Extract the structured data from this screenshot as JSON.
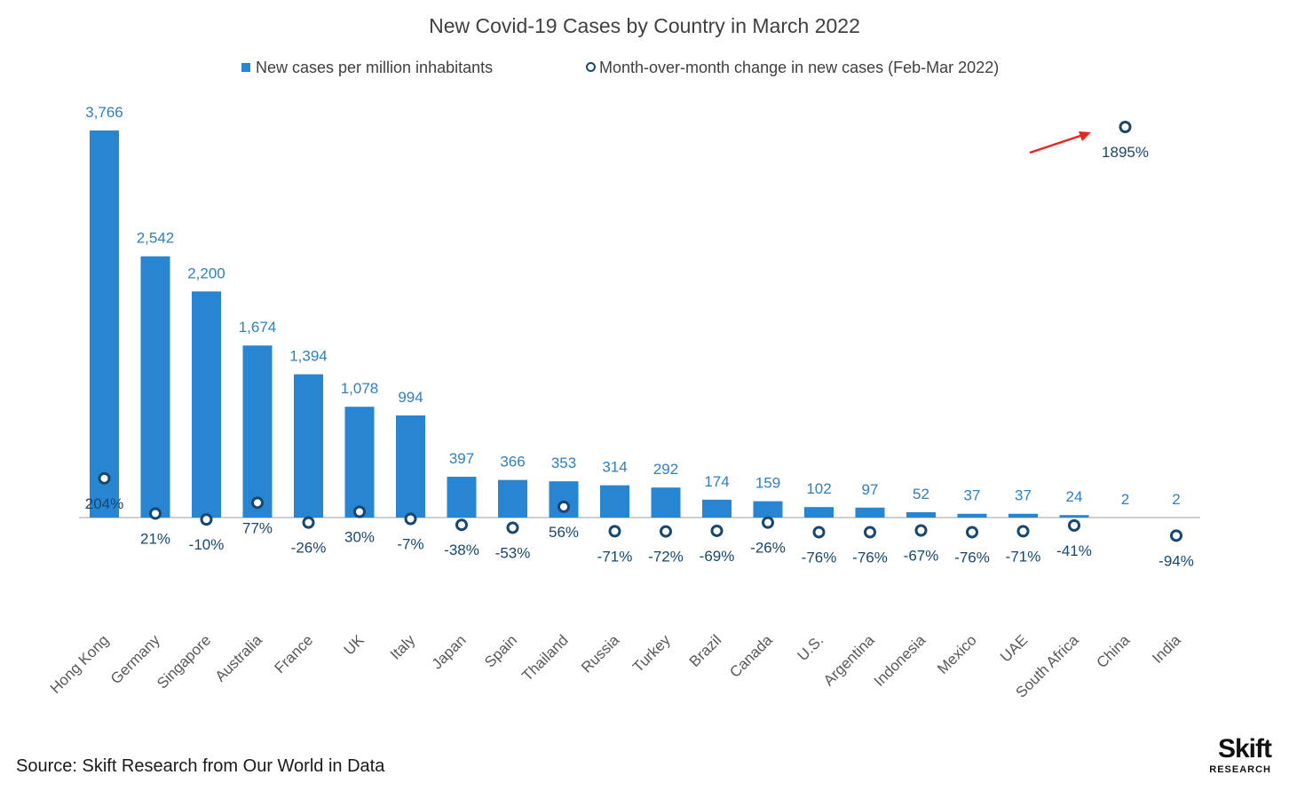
{
  "chart_data": {
    "type": "bar",
    "title": "New Covid-19 Cases by Country in March 2022",
    "categories": [
      "Hong Kong",
      "Germany",
      "Singapore",
      "Australia",
      "France",
      "UK",
      "Italy",
      "Japan",
      "Spain",
      "Thailand",
      "Russia",
      "Turkey",
      "Brazil",
      "Canada",
      "U.S.",
      "Argentina",
      "Indonesia",
      "Mexico",
      "UAE",
      "South Africa",
      "China",
      "India"
    ],
    "series": [
      {
        "name": "New cases per million inhabitants",
        "kind": "bar",
        "color": "#2785d1",
        "values": [
          3766,
          2542,
          2200,
          1674,
          1394,
          1078,
          994,
          397,
          366,
          353,
          314,
          292,
          174,
          159,
          102,
          97,
          52,
          37,
          37,
          24,
          2,
          2
        ],
        "labels": [
          "3,766",
          "2,542",
          "2,200",
          "1,674",
          "1,394",
          "1,078",
          "994",
          "397",
          "366",
          "353",
          "314",
          "292",
          "174",
          "159",
          "102",
          "97",
          "52",
          "37",
          "37",
          "24",
          "2",
          "2"
        ]
      },
      {
        "name": "Month-over-month change in new cases (Feb-Mar 2022)",
        "kind": "marker",
        "color": "#17476f",
        "values": [
          204,
          21,
          -10,
          77,
          -26,
          30,
          -7,
          -38,
          -53,
          56,
          -71,
          -72,
          -69,
          -26,
          -76,
          -76,
          -67,
          -76,
          -71,
          -41,
          1895,
          -94
        ],
        "labels": [
          "204%",
          "21%",
          "-10%",
          "77%",
          "-26%",
          "30%",
          "-7%",
          "-38%",
          "-53%",
          "56%",
          "-71%",
          "-72%",
          "-69%",
          "-26%",
          "-76%",
          "-76%",
          "-67%",
          "-76%",
          "-71%",
          "-41%",
          "1895%",
          "-94%"
        ]
      }
    ],
    "xlabel": "",
    "ylabel": "",
    "grid": false,
    "legend": "top-center",
    "annotation": {
      "type": "arrow",
      "color": "#e8251f",
      "target": "China"
    }
  },
  "source": "Source: Skift Research from Our World in Data",
  "logo": {
    "line1": "Skift",
    "line2": "RESEARCH"
  }
}
